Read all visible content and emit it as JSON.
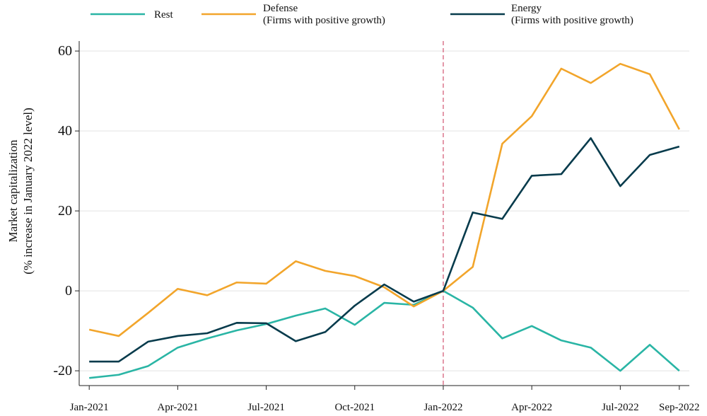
{
  "chart_data": {
    "type": "line",
    "ylabel": [
      "Market capitalization",
      "(% increase in January 2022 level)"
    ],
    "categories": [
      "Jan-2021",
      null,
      null,
      "Apr-2021",
      null,
      null,
      "Jul-2021",
      null,
      null,
      "Oct-2021",
      null,
      null,
      "Jan-2022",
      null,
      null,
      "Apr-2022",
      null,
      null,
      "Jul-2022",
      null,
      "Sep-2022"
    ],
    "series": [
      {
        "name": "Rest",
        "color": "#2ab5a5",
        "values": [
          -21.8,
          -21,
          -18.8,
          -14.2,
          -11.9,
          -9.9,
          -8.3,
          -6.2,
          -4.4,
          -8.5,
          -3,
          -3.5,
          0,
          -4.2,
          -11.9,
          -8.8,
          -12.4,
          -14.2,
          -20,
          -13.5,
          -20
        ]
      },
      {
        "name": "Defense\n(Firms with positive growth)",
        "color": "#f2a52b",
        "values": [
          -9.7,
          -11.3,
          -5.5,
          0.5,
          -1.1,
          2.1,
          1.8,
          7.4,
          5,
          3.7,
          0.9,
          -3.9,
          0,
          6,
          36.8,
          43.7,
          55.6,
          52,
          56.8,
          54.2,
          40.4
        ]
      },
      {
        "name": "Energy\n(Firms with positive growth)",
        "color": "#073b4c",
        "values": [
          -17.7,
          -17.7,
          -12.7,
          -11.3,
          -10.6,
          -8,
          -8.1,
          -12.6,
          -10.3,
          -3.7,
          1.6,
          -2.7,
          0,
          19.6,
          18,
          28.8,
          29.2,
          38.2,
          26.2,
          34,
          36.1
        ]
      }
    ],
    "ylim": [
      -23.7,
      62.5
    ],
    "yticks": [
      -20,
      0,
      20,
      40,
      60
    ],
    "grid": true,
    "legend": "top",
    "vline": {
      "x": "Jan-2022",
      "color": "#d6607a",
      "style": "dashed"
    }
  }
}
